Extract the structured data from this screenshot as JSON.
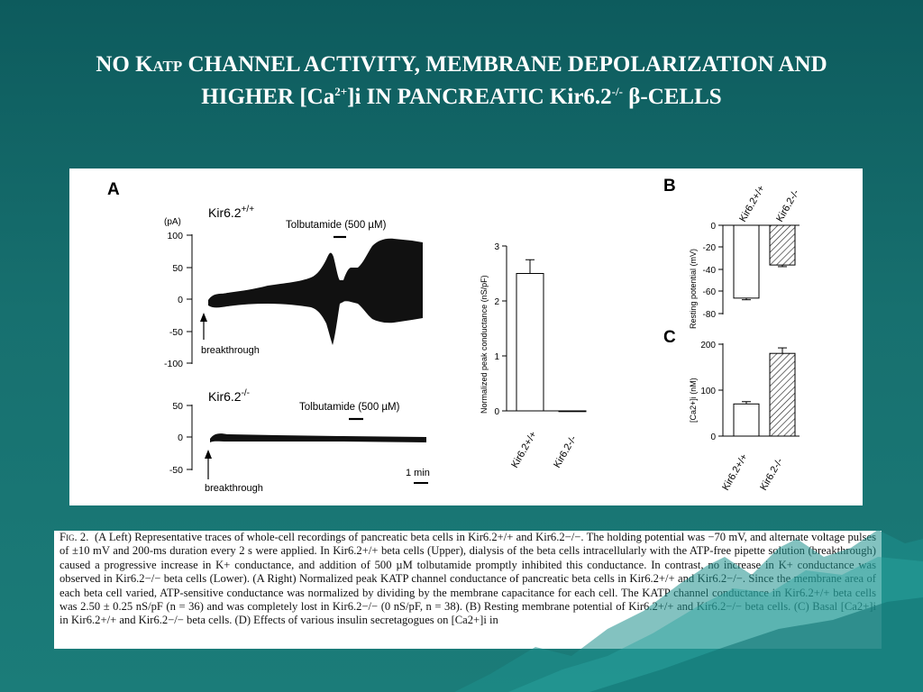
{
  "slide": {
    "title_line1_part1": "NO K",
    "title_line1_sub": "ATP",
    "title_line1_part2": " CHANNEL ACTIVITY, MEMBRANE DEPOLARIZATION AND",
    "title_line2_part1": "HIGHER [Ca",
    "title_line2_sup1": "2+",
    "title_line2_part2": "]i IN PANCREATIC Kir6.2",
    "title_line2_sup2": "-/-",
    "title_line2_part3": " β-CELLS"
  },
  "figure": {
    "panel_a": {
      "letter": "A",
      "upper": {
        "genotype": "Kir6.2",
        "genotype_sup": "+/+",
        "unit": "(pA)",
        "yticks": [
          "100",
          "50",
          "0",
          "-50",
          "-100"
        ],
        "drug_label": "Tolbutamide (500 µM)",
        "breakthrough": "breakthrough"
      },
      "lower": {
        "genotype": "Kir6.2",
        "genotype_sup": "-/-",
        "yticks": [
          "50",
          "0",
          "-50"
        ],
        "drug_label": "Tolbutamide (500 µM)",
        "breakthrough": "breakthrough",
        "scale_label": "1 min"
      },
      "bar": {
        "ylabel": "Normalized peak conductance (nS/pF)",
        "yticks": [
          "3",
          "2",
          "1",
          "0"
        ],
        "categories": [
          "Kir6.2+/+",
          "Kir6.2-/-"
        ]
      }
    },
    "panel_b": {
      "letter": "B",
      "ylabel": "Resting potential (mV)",
      "yticks": [
        "0",
        "-20",
        "-40",
        "-60",
        "-80"
      ],
      "categories": [
        "Kir6.2+/+",
        "Kir6.2-/-"
      ]
    },
    "panel_c": {
      "letter": "C",
      "ylabel": "[Ca2+]i (nM)",
      "yticks": [
        "200",
        "100",
        "0"
      ],
      "categories": [
        "Kir6.2+/+",
        "Kir6.2-/-"
      ]
    }
  },
  "chart_data": [
    {
      "type": "bar",
      "ylabel": "Normalized peak conductance (nS/pF)",
      "categories": [
        "Kir6.2+/+",
        "Kir6.2-/-"
      ],
      "values": [
        2.5,
        0.0
      ],
      "errors": [
        0.25,
        0.0
      ],
      "ylim": [
        0,
        3
      ],
      "grid": false
    },
    {
      "type": "bar",
      "ylabel": "Resting potential (mV)",
      "categories": [
        "Kir6.2+/+",
        "Kir6.2-/-"
      ],
      "values": [
        -66,
        -36
      ],
      "errors": [
        1.5,
        1.5
      ],
      "ylim": [
        -80,
        0
      ],
      "grid": false
    },
    {
      "type": "bar",
      "ylabel": "[Ca2+]i (nM)",
      "categories": [
        "Kir6.2+/+",
        "Kir6.2-/-"
      ],
      "values": [
        70,
        180
      ],
      "errors": [
        5,
        12
      ],
      "ylim": [
        0,
        200
      ],
      "grid": false
    }
  ],
  "caption": {
    "label": "Fig. 2.",
    "text": "(A Left) Representative traces of whole-cell recordings of pancreatic beta cells in Kir6.2+/+ and Kir6.2−/−. The holding potential was −70 mV, and alternate voltage pulses of ±10 mV and 200-ms duration every 2 s were applied. In Kir6.2+/+ beta cells (Upper), dialysis of the beta cells intracellularly with the ATP-free pipette solution (breakthrough) caused a progressive increase in K+ conductance, and addition of 500 µM tolbutamide promptly inhibited this conductance. In contrast, no increase in K+ conductance was observed in Kir6.2−/− beta cells (Lower). (A Right) Normalized peak KATP channel conductance of pancreatic beta cells in Kir6.2+/+ and Kir6.2−/−. Since the membrane area of each beta cell varied, ATP-sensitive conductance was normalized by dividing by the membrane capacitance for each cell. The KATP channel conductance in Kir6.2+/+ beta cells was 2.50 ± 0.25 nS/pF (n = 36) and was completely lost in Kir6.2−/− (0 nS/pF, n = 38). (B) Resting membrane potential of Kir6.2+/+ and Kir6.2−/− beta cells. (C) Basal [Ca2+]i in Kir6.2+/+ and Kir6.2−/− beta cells. (D) Effects of various insulin secretagogues on [Ca2+]i in"
  }
}
